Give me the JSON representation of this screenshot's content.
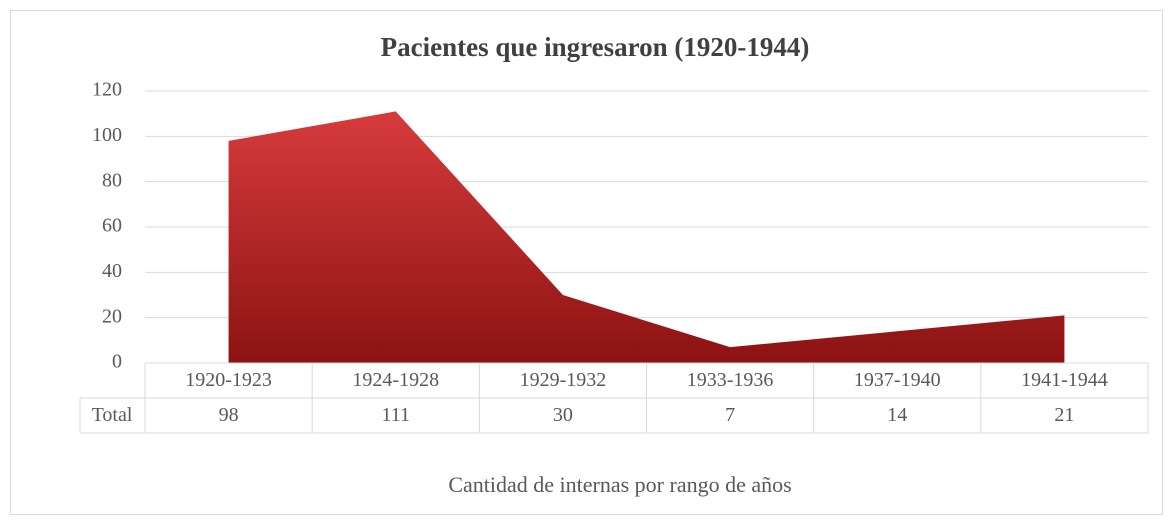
{
  "chart_data": {
    "type": "area",
    "title": "Pacientes que ingresaron (1920-1944)",
    "x_label": "Cantidad de internas por rango de años",
    "categories": [
      "1920-1923",
      "1924-1928",
      "1929-1932",
      "1933-1936",
      "1937-1940",
      "1941-1944"
    ],
    "series": [
      {
        "name": "Total",
        "color": "#d73b3c",
        "color_bottom": "#8c1212",
        "values": [
          98,
          111,
          30,
          7,
          14,
          21
        ]
      }
    ],
    "ylim": [
      0,
      120
    ],
    "yticks": [
      0,
      20,
      40,
      60,
      80,
      100,
      120
    ],
    "grid": true,
    "data_table": true
  }
}
